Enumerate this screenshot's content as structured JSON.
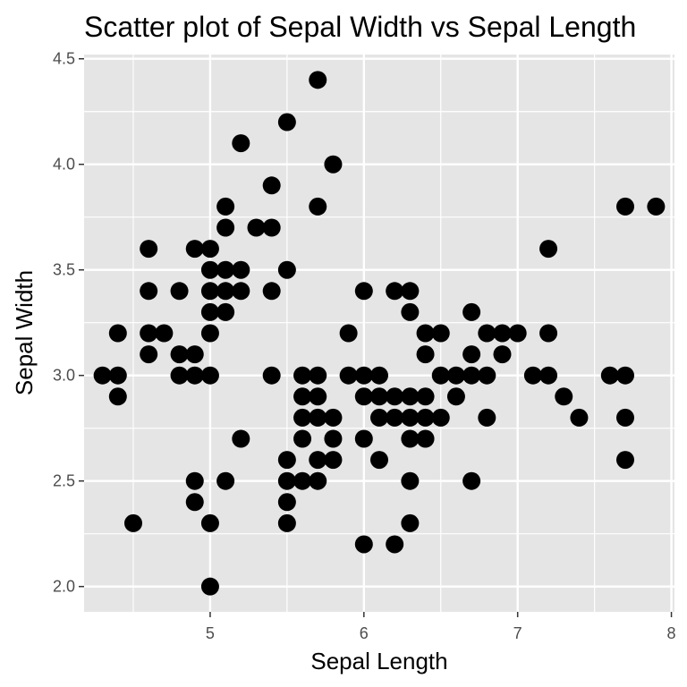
{
  "chart_data": {
    "type": "scatter",
    "title": "Scatter plot of Sepal Width vs Sepal Length",
    "xlabel": "Sepal Length",
    "ylabel": "Sepal Width",
    "xlim": [
      4.18,
      8.02
    ],
    "ylim": [
      1.88,
      4.52
    ],
    "x_ticks": [
      5,
      6,
      7,
      8
    ],
    "x_tick_labels": [
      "5",
      "6",
      "7",
      "8"
    ],
    "y_ticks": [
      2.0,
      2.5,
      3.0,
      3.5,
      4.0,
      4.5
    ],
    "y_tick_labels": [
      "2.0",
      "2.5",
      "3.0",
      "3.5",
      "4.0",
      "4.5"
    ],
    "grid": true,
    "legend": "none",
    "colors": {
      "panel": "#e5e5e5",
      "grid": "#ffffff",
      "point": "#000000",
      "tick": "#333333"
    },
    "points": [
      [
        4.3,
        3.0
      ],
      [
        4.4,
        3.0
      ],
      [
        4.4,
        3.2
      ],
      [
        4.4,
        2.9
      ],
      [
        4.5,
        2.3
      ],
      [
        4.6,
        3.6
      ],
      [
        4.6,
        3.4
      ],
      [
        4.6,
        3.2
      ],
      [
        4.6,
        3.1
      ],
      [
        4.7,
        3.2
      ],
      [
        4.8,
        3.4
      ],
      [
        4.8,
        3.1
      ],
      [
        4.8,
        3.0
      ],
      [
        4.9,
        3.6
      ],
      [
        4.9,
        3.1
      ],
      [
        4.9,
        3.0
      ],
      [
        4.9,
        2.5
      ],
      [
        4.9,
        2.4
      ],
      [
        5.0,
        3.6
      ],
      [
        5.0,
        3.5
      ],
      [
        5.0,
        3.4
      ],
      [
        5.0,
        3.3
      ],
      [
        5.0,
        3.2
      ],
      [
        5.0,
        3.0
      ],
      [
        5.0,
        2.3
      ],
      [
        5.0,
        2.0
      ],
      [
        5.1,
        3.8
      ],
      [
        5.1,
        3.7
      ],
      [
        5.1,
        3.5
      ],
      [
        5.1,
        3.4
      ],
      [
        5.1,
        3.3
      ],
      [
        5.1,
        2.5
      ],
      [
        5.2,
        4.1
      ],
      [
        5.2,
        3.5
      ],
      [
        5.2,
        3.4
      ],
      [
        5.2,
        2.7
      ],
      [
        5.3,
        3.7
      ],
      [
        5.4,
        3.9
      ],
      [
        5.4,
        3.7
      ],
      [
        5.4,
        3.4
      ],
      [
        5.4,
        3.0
      ],
      [
        5.5,
        4.2
      ],
      [
        5.5,
        3.5
      ],
      [
        5.5,
        2.6
      ],
      [
        5.5,
        2.5
      ],
      [
        5.5,
        2.4
      ],
      [
        5.5,
        2.3
      ],
      [
        5.6,
        3.0
      ],
      [
        5.6,
        2.9
      ],
      [
        5.6,
        2.8
      ],
      [
        5.6,
        2.7
      ],
      [
        5.6,
        2.5
      ],
      [
        5.7,
        4.4
      ],
      [
        5.7,
        3.8
      ],
      [
        5.7,
        3.0
      ],
      [
        5.7,
        2.9
      ],
      [
        5.7,
        2.8
      ],
      [
        5.7,
        2.6
      ],
      [
        5.7,
        2.5
      ],
      [
        5.8,
        4.0
      ],
      [
        5.8,
        2.8
      ],
      [
        5.8,
        2.7
      ],
      [
        5.8,
        2.6
      ],
      [
        5.9,
        3.2
      ],
      [
        5.9,
        3.0
      ],
      [
        6.0,
        3.4
      ],
      [
        6.0,
        3.0
      ],
      [
        6.0,
        2.9
      ],
      [
        6.0,
        2.7
      ],
      [
        6.0,
        2.2
      ],
      [
        6.1,
        3.0
      ],
      [
        6.1,
        2.9
      ],
      [
        6.1,
        2.8
      ],
      [
        6.1,
        2.6
      ],
      [
        6.2,
        3.4
      ],
      [
        6.2,
        2.9
      ],
      [
        6.2,
        2.8
      ],
      [
        6.2,
        2.2
      ],
      [
        6.3,
        3.4
      ],
      [
        6.3,
        3.3
      ],
      [
        6.3,
        2.9
      ],
      [
        6.3,
        2.8
      ],
      [
        6.3,
        2.7
      ],
      [
        6.3,
        2.5
      ],
      [
        6.3,
        2.3
      ],
      [
        6.4,
        3.2
      ],
      [
        6.4,
        3.1
      ],
      [
        6.4,
        2.9
      ],
      [
        6.4,
        2.8
      ],
      [
        6.4,
        2.7
      ],
      [
        6.5,
        3.2
      ],
      [
        6.5,
        3.0
      ],
      [
        6.5,
        2.8
      ],
      [
        6.6,
        3.0
      ],
      [
        6.6,
        2.9
      ],
      [
        6.7,
        3.3
      ],
      [
        6.7,
        3.1
      ],
      [
        6.7,
        3.0
      ],
      [
        6.7,
        2.5
      ],
      [
        6.8,
        3.2
      ],
      [
        6.8,
        3.0
      ],
      [
        6.8,
        2.8
      ],
      [
        6.9,
        3.2
      ],
      [
        6.9,
        3.1
      ],
      [
        7.0,
        3.2
      ],
      [
        7.1,
        3.0
      ],
      [
        7.2,
        3.6
      ],
      [
        7.2,
        3.2
      ],
      [
        7.2,
        3.0
      ],
      [
        7.3,
        2.9
      ],
      [
        7.4,
        2.8
      ],
      [
        7.6,
        3.0
      ],
      [
        7.7,
        3.8
      ],
      [
        7.7,
        3.0
      ],
      [
        7.7,
        2.8
      ],
      [
        7.7,
        2.6
      ],
      [
        7.9,
        3.8
      ]
    ]
  }
}
